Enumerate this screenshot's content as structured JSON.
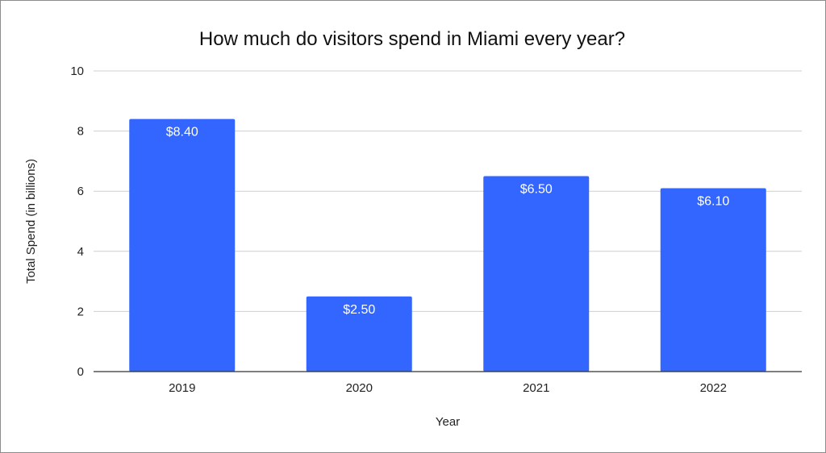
{
  "chart_data": {
    "type": "bar",
    "title": "How much do visitors spend in Miami every year?",
    "xlabel": "Year",
    "ylabel": "Total Spend (in billions)",
    "categories": [
      "2019",
      "2020",
      "2021",
      "2022"
    ],
    "values": [
      8.4,
      2.5,
      6.5,
      6.1
    ],
    "data_labels": [
      "$8.40",
      "$2.50",
      "$6.50",
      "$6.10"
    ],
    "ylim": [
      0,
      10
    ],
    "yticks": [
      0,
      2,
      4,
      6,
      8,
      10
    ],
    "ytick_labels": [
      "0",
      "2",
      "4",
      "6",
      "8",
      "10"
    ],
    "grid": true,
    "legend": "none",
    "colors": {
      "bar": "#3366ff"
    }
  }
}
